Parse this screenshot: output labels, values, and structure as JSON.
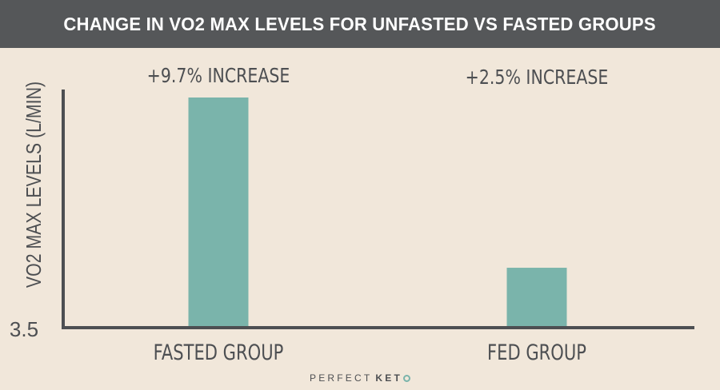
{
  "header": {
    "title": "CHANGE IN VO2 MAX LEVELS FOR UNFASTED VS FASTED GROUPS"
  },
  "chart_data": {
    "type": "bar",
    "categories": [
      "FASTED GROUP",
      "FED GROUP"
    ],
    "values": [
      9.7,
      2.5
    ],
    "value_unit": "% increase",
    "annotations": [
      "+9.7% INCREASE",
      "+2.5% INCREASE"
    ],
    "ylabel": "VO2 MAX LEVELS (L/MIN)",
    "y_tick_labels": [
      "3.5"
    ],
    "grid": false,
    "bar_color": "#7ab4ab",
    "axis_color": "#4d4f52"
  },
  "footer": {
    "brand_part1": "PERFECT",
    "brand_part2": "KET",
    "brand_logo_icon": "circle-o-icon"
  }
}
